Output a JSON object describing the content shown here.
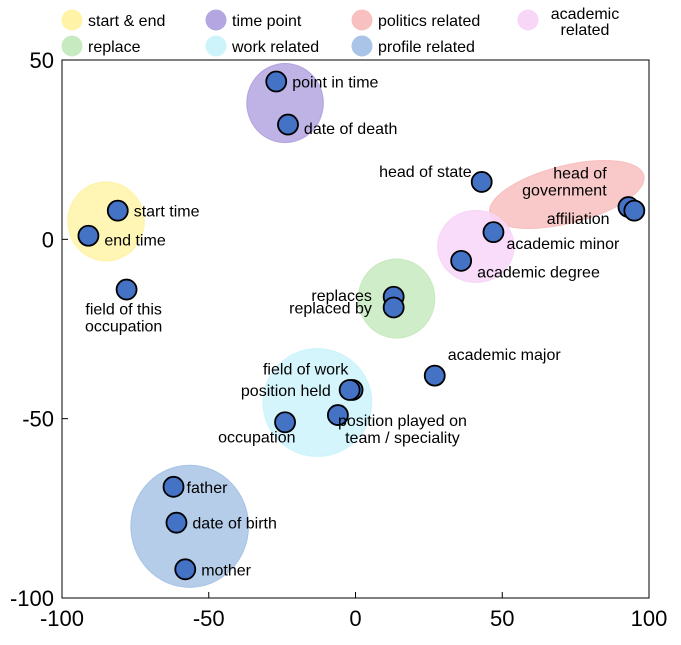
{
  "chart_data": {
    "type": "scatter",
    "title": "",
    "xlabel": "",
    "ylabel": "",
    "xlim": [
      -100,
      100
    ],
    "ylim": [
      -100,
      50
    ],
    "grid": false,
    "x_ticks": [
      "-100",
      "-50",
      "0",
      "50",
      "100"
    ],
    "y_ticks": [
      "50",
      "0",
      "-50",
      "-100"
    ],
    "point_color": "#4472c4",
    "legend": [
      {
        "id": "start_end",
        "label": "start & end",
        "color": "#fff3a8"
      },
      {
        "id": "time_point",
        "label": "time point",
        "color": "#b4a6e0"
      },
      {
        "id": "politics",
        "label": "politics related",
        "color": "#f8c0c0"
      },
      {
        "id": "academic",
        "label": "academic related",
        "label_lines": [
          "academic",
          "related"
        ],
        "color": "#f8d6f8"
      },
      {
        "id": "replace",
        "label": "replace",
        "color": "#c8eac0"
      },
      {
        "id": "work",
        "label": "work related",
        "color": "#cdf3fb"
      },
      {
        "id": "profile",
        "label": "profile related",
        "color": "#a9c4e6"
      }
    ],
    "clusters": [
      {
        "group": "start_end",
        "cx": -85,
        "cy": 5,
        "rx": 13,
        "ry": 11,
        "angle": 0
      },
      {
        "group": "time_point",
        "cx": -24,
        "cy": 38,
        "rx": 13,
        "ry": 11,
        "angle": 0
      },
      {
        "group": "politics",
        "cx": 72,
        "cy": 12.5,
        "rx": 27,
        "ry": 8,
        "angle": -14
      },
      {
        "group": "academic",
        "cx": 41,
        "cy": -2,
        "rx": 13,
        "ry": 10,
        "angle": 0
      },
      {
        "group": "replace",
        "cx": 14,
        "cy": -16.5,
        "rx": 13,
        "ry": 11,
        "angle": 0
      },
      {
        "group": "work",
        "cx": -13,
        "cy": -45.5,
        "rx": 18.5,
        "ry": 15,
        "angle": 0
      },
      {
        "group": "profile",
        "cx": -56.5,
        "cy": -80,
        "rx": 20,
        "ry": 17,
        "angle": 0
      }
    ],
    "points": [
      {
        "label": "point in time",
        "x": -27,
        "y": 44,
        "anchor": "start",
        "dx": 1,
        "dy": 0
      },
      {
        "label": "date of death",
        "x": -23,
        "y": 32,
        "anchor": "start",
        "dx": 1,
        "dy": -1
      },
      {
        "label": "start time",
        "x": -81,
        "y": 8,
        "anchor": "start",
        "dx": 1,
        "dy": 0
      },
      {
        "label": "end time",
        "x": -91,
        "y": 1,
        "anchor": "start",
        "dx": 1,
        "dy": -1
      },
      {
        "label": "field of this occupation",
        "label_lines": [
          "field of this",
          "occupation"
        ],
        "x": -78,
        "y": -14,
        "anchor": "middle",
        "dx": -1,
        "dy": -8
      },
      {
        "label": "head of state",
        "x": 43,
        "y": 16,
        "anchor": "end",
        "dx": 1,
        "dy": 3
      },
      {
        "label": "head of government",
        "label_lines": [
          "head of",
          "government"
        ],
        "x": 93,
        "y": 9,
        "anchor": "end",
        "dx": -3,
        "dy": 7
      },
      {
        "label": "affiliation",
        "x": 95,
        "y": 8,
        "anchor": "end",
        "dx": -4,
        "dy": -2
      },
      {
        "label": "academic minor",
        "x": 47,
        "y": 2,
        "anchor": "start",
        "dx": 0,
        "dy": -3
      },
      {
        "label": "academic degree",
        "x": 36,
        "y": -6,
        "anchor": "start",
        "dx": 1,
        "dy": -3
      },
      {
        "label": "replaces",
        "x": 13,
        "y": -16,
        "anchor": "end",
        "dx": -3,
        "dy": 0.5
      },
      {
        "label": "replaced by",
        "x": 13,
        "y": -19,
        "anchor": "end",
        "dx": -3,
        "dy": 0
      },
      {
        "label": "academic major",
        "x": 27,
        "y": -38,
        "anchor": "start",
        "dx": 0,
        "dy": 6
      },
      {
        "label": "field of work",
        "x": -1,
        "y": -42,
        "anchor": "end",
        "dx": 3,
        "dy": 6
      },
      {
        "label": "position held",
        "x": -2,
        "y": -42,
        "anchor": "end",
        "dx": -2,
        "dy": 0
      },
      {
        "label": "position played on team / speciality",
        "label_lines": [
          "position played on",
          "team / speciality"
        ],
        "x": -6,
        "y": -49,
        "anchor": "middle",
        "dx": 22,
        "dy": -4
      },
      {
        "label": "occupation",
        "x": -24,
        "y": -51,
        "anchor": "end",
        "dx": 8,
        "dy": -4
      },
      {
        "label": "father",
        "x": -62,
        "y": -69,
        "anchor": "start",
        "dx": 0,
        "dy": 0
      },
      {
        "label": "date of birth",
        "x": -61,
        "y": -79,
        "anchor": "start",
        "dx": 1,
        "dy": 0
      },
      {
        "label": "mother",
        "x": -58,
        "y": -92,
        "anchor": "start",
        "dx": 1,
        "dy": 0
      }
    ]
  }
}
